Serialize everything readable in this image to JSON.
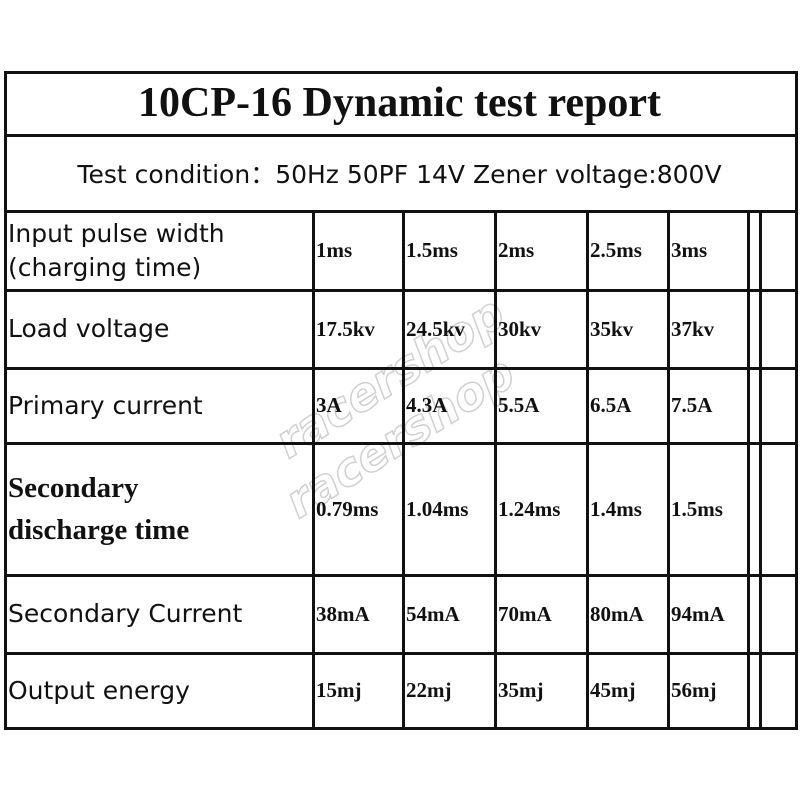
{
  "title": "10CP-16 Dynamic test report",
  "condition": "Test condition：50Hz 50PF 14V Zener voltage:800V",
  "watermark": "racershop",
  "rows": [
    {
      "label": "Input pulse width\n(charging time)",
      "bold": false,
      "values": [
        "1ms",
        "1.5ms",
        "2ms",
        "2.5ms",
        "3ms"
      ]
    },
    {
      "label": "Load voltage",
      "bold": false,
      "values": [
        "17.5kv",
        "24.5kv",
        "30kv",
        "35kv",
        "37kv"
      ]
    },
    {
      "label": "Primary current",
      "bold": false,
      "values": [
        "3A",
        "4.3A",
        "5.5A",
        "6.5A",
        "7.5A"
      ]
    },
    {
      "label": "Secondary\ndischarge time",
      "bold": true,
      "values": [
        "0.79ms",
        "1.04ms",
        "1.24ms",
        "1.4ms",
        "1.5ms"
      ]
    },
    {
      "label": "Secondary Current",
      "bold": false,
      "values": [
        "38mA",
        "54mA",
        "70mA",
        "80mA",
        "94mA"
      ]
    },
    {
      "label": "Output energy",
      "bold": false,
      "values": [
        "15mj",
        "22mj",
        "35mj",
        "45mj",
        "56mj"
      ]
    }
  ]
}
